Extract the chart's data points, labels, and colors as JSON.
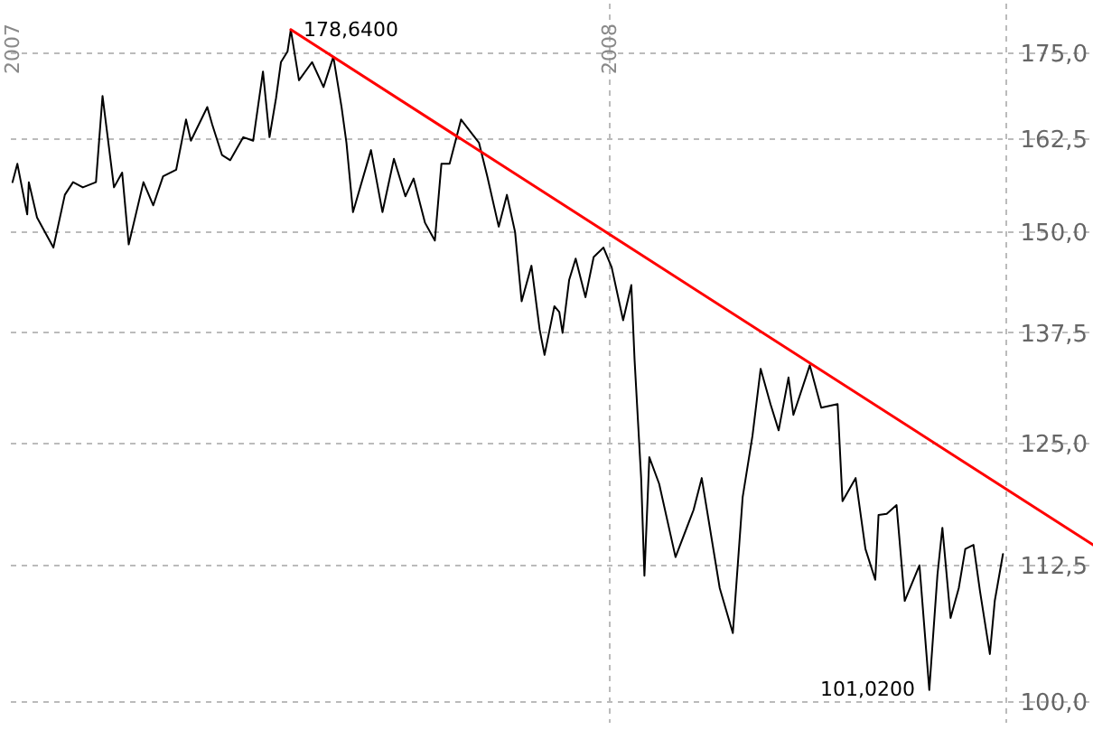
{
  "chart_data": {
    "type": "line",
    "log": "y",
    "grid": true,
    "marker": "none",
    "line_style": "solid",
    "xlim": [
      "2006-12-31",
      "2008-10-22"
    ],
    "xticks": [
      {
        "value": "2007-01-01",
        "label": "2007"
      },
      {
        "value": "2008-01-01",
        "label": "2008"
      },
      {
        "value": "2008-08-30",
        "label": null
      }
    ],
    "ylim": [
      98.2,
      182.7
    ],
    "yticks": [
      {
        "value": 100,
        "label": "100,0"
      },
      {
        "value": 112.5,
        "label": "112,5"
      },
      {
        "value": 125,
        "label": "125,0"
      },
      {
        "value": 137.5,
        "label": "137,5"
      },
      {
        "value": 150,
        "label": "150,0"
      },
      {
        "value": 162.5,
        "label": "162,5"
      },
      {
        "value": 175,
        "label": "175,0"
      }
    ],
    "series": [
      {
        "color": "#000000",
        "x": [
          "2007-01-01",
          "2007-01-04",
          "2007-01-10",
          "2007-01-11",
          "2007-01-16",
          "2007-01-26",
          "2007-02-02",
          "2007-02-07",
          "2007-02-13",
          "2007-02-21",
          "2007-02-25",
          "2007-03-04",
          "2007-03-09",
          "2007-03-13",
          "2007-03-22",
          "2007-03-28",
          "2007-04-03",
          "2007-04-11",
          "2007-04-17",
          "2007-04-20",
          "2007-04-30",
          "2007-05-03",
          "2007-05-09",
          "2007-05-14",
          "2007-05-22",
          "2007-05-28",
          "2007-06-03",
          "2007-06-07",
          "2007-06-11",
          "2007-06-14",
          "2007-06-18",
          "2007-06-20",
          "2007-06-25",
          "2007-07-03",
          "2007-07-10",
          "2007-07-16",
          "2007-07-21",
          "2007-07-24",
          "2007-07-28",
          "2007-08-08",
          "2007-08-15",
          "2007-08-22",
          "2007-08-29",
          "2007-09-03",
          "2007-09-10",
          "2007-09-16",
          "2007-09-20",
          "2007-09-25",
          "2007-10-02",
          "2007-10-13",
          "2007-10-18",
          "2007-10-25",
          "2007-10-30",
          "2007-11-04",
          "2007-11-08",
          "2007-11-14",
          "2007-11-19",
          "2007-11-22",
          "2007-11-28",
          "2007-12-01",
          "2007-12-03",
          "2007-12-07",
          "2007-12-11",
          "2007-12-17",
          "2007-12-22",
          "2007-12-28",
          "2008-01-02",
          "2008-01-09",
          "2008-01-14",
          "2008-01-16",
          "2008-01-20",
          "2008-01-22",
          "2008-01-25",
          "2008-01-31",
          "2008-02-10",
          "2008-02-21",
          "2008-02-26",
          "2008-03-08",
          "2008-03-16",
          "2008-03-22",
          "2008-03-28",
          "2008-04-02",
          "2008-04-08",
          "2008-04-13",
          "2008-04-19",
          "2008-04-22",
          "2008-05-02",
          "2008-05-09",
          "2008-05-19",
          "2008-05-22",
          "2008-05-30",
          "2008-06-05",
          "2008-06-11",
          "2008-06-13",
          "2008-06-18",
          "2008-06-24",
          "2008-06-29",
          "2008-07-08",
          "2008-07-14",
          "2008-07-19",
          "2008-07-22",
          "2008-07-27",
          "2008-08-01",
          "2008-08-05",
          "2008-08-10",
          "2008-08-14",
          "2008-08-20",
          "2008-08-23",
          "2008-08-28"
        ],
        "values": [
          156.6,
          159.1,
          152.3,
          156.6,
          151.9,
          148.0,
          154.9,
          156.6,
          155.9,
          156.6,
          168.7,
          155.9,
          157.9,
          148.4,
          156.6,
          153.5,
          157.4,
          158.3,
          165.3,
          162.3,
          167.1,
          164.6,
          160.3,
          159.6,
          162.8,
          162.3,
          172.3,
          162.8,
          168.4,
          173.7,
          175.3,
          178.64,
          171.0,
          173.7,
          170.0,
          174.5,
          167.1,
          162.0,
          152.6,
          161.0,
          152.6,
          159.8,
          154.7,
          157.1,
          151.2,
          148.9,
          159.1,
          159.1,
          165.3,
          162.0,
          157.4,
          150.7,
          154.9,
          150.0,
          141.3,
          145.7,
          137.9,
          134.9,
          140.7,
          140.0,
          137.5,
          143.9,
          146.6,
          141.8,
          146.8,
          148.0,
          145.5,
          139.0,
          143.3,
          134.3,
          121.3,
          111.5,
          123.5,
          120.7,
          113.3,
          118.0,
          121.3,
          110.3,
          106.1,
          119.3,
          125.8,
          133.3,
          129.3,
          126.4,
          132.3,
          128.1,
          133.7,
          128.9,
          129.3,
          118.9,
          121.3,
          114.1,
          111.1,
          117.5,
          117.6,
          118.5,
          109.1,
          112.5,
          101.02,
          111.6,
          116.2,
          107.5,
          110.3,
          114.1,
          114.5,
          110.0,
          104.2,
          109.1,
          113.6
        ]
      },
      {
        "color": "#ff0000",
        "x": [
          "2007-06-20",
          "2008-10-22"
        ],
        "values": [
          178.64,
          114.5
        ]
      }
    ],
    "annotations": [
      {
        "text": "178,6400",
        "x": "2007-06-20",
        "y": 178.64
      },
      {
        "text": "101,0200",
        "x": "2008-07-14",
        "y": 101.02
      }
    ]
  }
}
